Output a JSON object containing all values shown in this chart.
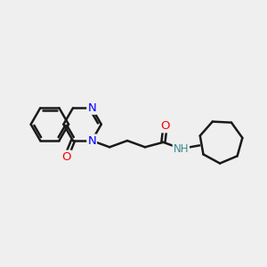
{
  "background_color": "#efefef",
  "line_color": "#1a1a1a",
  "bond_width": 1.8,
  "atom_colors": {
    "N": "#0000ff",
    "O": "#ff0000",
    "NH": "#3a8a8a",
    "C": "#1a1a1a"
  },
  "font_size_atoms": 9.5,
  "xlim": [
    0,
    10
  ],
  "ylim": [
    0,
    10
  ]
}
